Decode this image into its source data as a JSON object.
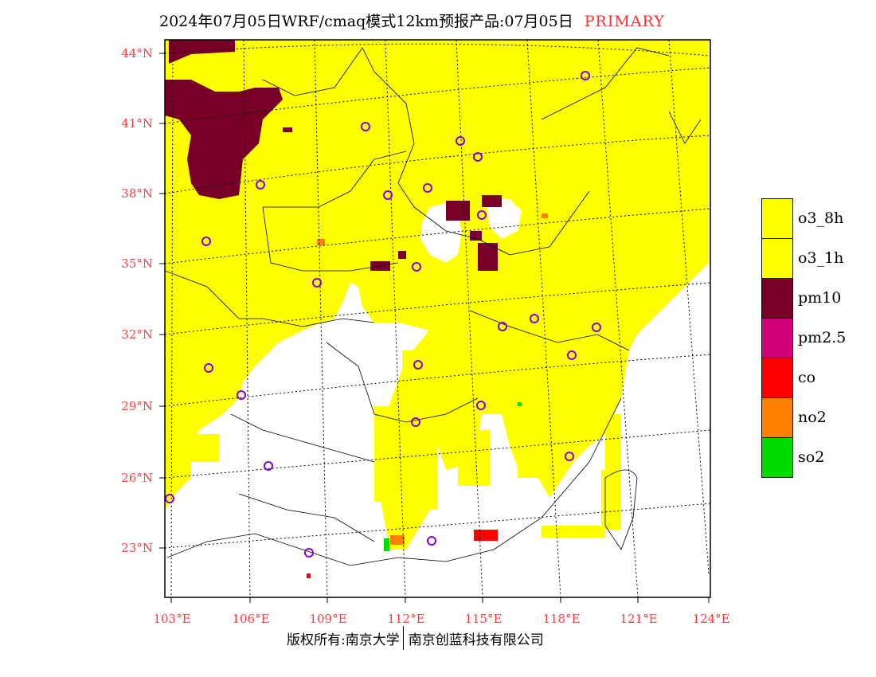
{
  "title": {
    "main": "2024年07月05日WRF/cmaq模式12km预报产品:07月05日",
    "tag": "PRIMARY"
  },
  "map": {
    "lat_labels": [
      "44°N",
      "41°N",
      "38°N",
      "35°N",
      "32°N",
      "29°N",
      "26°N",
      "23°N"
    ],
    "lon_labels": [
      "103°E",
      "106°E",
      "109°E",
      "112°E",
      "115°E",
      "118°E",
      "121°E",
      "124°E"
    ]
  },
  "legend": {
    "items": [
      {
        "label": "o3_8h",
        "color": "#ffff00"
      },
      {
        "label": "o3_1h",
        "color": "#ffff00"
      },
      {
        "label": "pm10",
        "color": "#780028"
      },
      {
        "label": "pm2.5",
        "color": "#d2007a"
      },
      {
        "label": "co",
        "color": "#ff0000"
      },
      {
        "label": "no2",
        "color": "#ff7f00"
      },
      {
        "label": "so2",
        "color": "#00dc00"
      }
    ]
  },
  "footer": {
    "left": "版权所有:南京大学",
    "right": "南京创蓝科技有限公司"
  }
}
